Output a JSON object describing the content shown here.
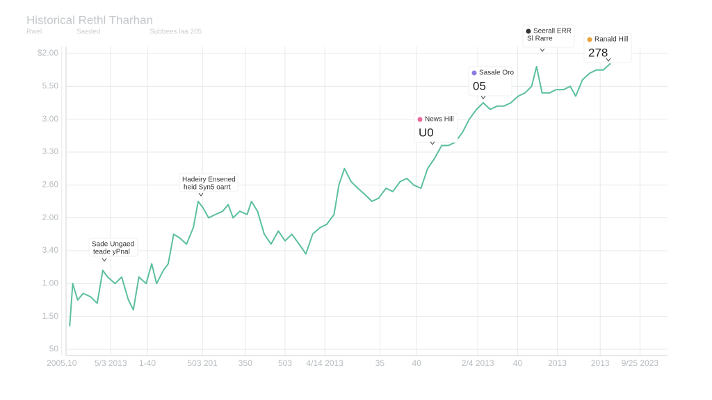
{
  "chart_data": {
    "type": "line",
    "title": "Historical Rethl Tharhan",
    "subtitle": [
      "Rwel",
      "Saeded",
      "Subbees laa 205"
    ],
    "xlim": [
      0,
      100
    ],
    "ylim": [
      0,
      9
    ],
    "grid": true,
    "xticks": [
      {
        "value": 1,
        "label": "2005.10"
      },
      {
        "value": 9,
        "label": "5/3 2013"
      },
      {
        "value": 15,
        "label": "1-40"
      },
      {
        "value": 24,
        "label": "503 201"
      },
      {
        "value": 31,
        "label": "350"
      },
      {
        "value": 37.5,
        "label": "503"
      },
      {
        "value": 44,
        "label": "4/14 2013"
      },
      {
        "value": 53,
        "label": "35"
      },
      {
        "value": 59,
        "label": "40"
      },
      {
        "value": 69,
        "label": "2/4 2013"
      },
      {
        "value": 75.5,
        "label": "40"
      },
      {
        "value": 82,
        "label": "2013"
      },
      {
        "value": 89,
        "label": "2013"
      },
      {
        "value": 95.5,
        "label": "9/25 2023"
      }
    ],
    "yticks": [
      {
        "value": 0,
        "label": "50"
      },
      {
        "value": 1,
        "label": "1.50"
      },
      {
        "value": 2,
        "label": "1.00"
      },
      {
        "value": 3,
        "label": "3.40"
      },
      {
        "value": 4,
        "label": "2.00"
      },
      {
        "value": 5,
        "label": "2.60"
      },
      {
        "value": 6,
        "label": "3.30"
      },
      {
        "value": 7,
        "label": "3.00"
      },
      {
        "value": 8,
        "label": "5.50"
      },
      {
        "value": 9,
        "label": "$2.00"
      }
    ],
    "series": [
      {
        "color": "#5bbf9e",
        "x": [
          2.3,
          2.8,
          3.6,
          4.5,
          5.7,
          6.8,
          7.7,
          8.5,
          9.7,
          10.8,
          11.9,
          12.7,
          13.6,
          14.8,
          15.7,
          16.5,
          17.6,
          18.4,
          19.3,
          20.2,
          21.4,
          22.5,
          23.3,
          24.1,
          25.0,
          26.1,
          27.3,
          28.2,
          29.0,
          30.1,
          31.3,
          32.0,
          33.0,
          34.1,
          35.2,
          36.4,
          37.5,
          38.6,
          39.8,
          40.9,
          42.0,
          43.2,
          44.3,
          45.5,
          46.3,
          47.2,
          48.3,
          49.4,
          50.6,
          51.7,
          52.8,
          54.0,
          55.1,
          56.3,
          57.4,
          58.5,
          59.7,
          60.8,
          61.9,
          63.1,
          64.2,
          65.3,
          66.5,
          67.6,
          68.8,
          69.9,
          71.0,
          72.2,
          73.3,
          74.4,
          75.6,
          76.7,
          77.8,
          78.6,
          79.5,
          80.7,
          81.8,
          83.0,
          84.1,
          85.0,
          86.1,
          87.3,
          88.4,
          89.5,
          90.7
        ],
        "values": [
          0.7,
          2.0,
          1.5,
          1.7,
          1.6,
          1.4,
          2.4,
          2.2,
          2.0,
          2.2,
          1.5,
          1.2,
          2.2,
          2.0,
          2.6,
          2.0,
          2.4,
          2.6,
          3.5,
          3.4,
          3.2,
          3.7,
          4.5,
          4.3,
          4.0,
          4.1,
          4.2,
          4.4,
          4.0,
          4.2,
          4.1,
          4.5,
          4.2,
          3.5,
          3.2,
          3.6,
          3.3,
          3.5,
          3.2,
          2.9,
          3.5,
          3.7,
          3.8,
          4.1,
          5.0,
          5.5,
          5.1,
          4.9,
          4.7,
          4.5,
          4.6,
          4.9,
          4.8,
          5.1,
          5.2,
          5.0,
          4.9,
          5.5,
          5.8,
          6.2,
          6.2,
          6.3,
          6.6,
          7.0,
          7.3,
          7.5,
          7.3,
          7.4,
          7.4,
          7.5,
          7.7,
          7.8,
          8.0,
          8.6,
          7.8,
          7.8,
          7.9,
          7.9,
          8.0,
          7.7,
          8.2,
          8.4,
          8.5,
          8.5,
          8.7
        ]
      }
    ],
    "annotations": [
      {
        "lines": [
          "Sade Ungaed",
          "teade yPnal"
        ]
      },
      {
        "lines": [
          "Hadeiry Ensened",
          "heid Syn5 oarrt"
        ]
      },
      {
        "lines": [
          "News Hill",
          "U0"
        ]
      },
      {
        "lines": [
          "Sasale Oro",
          "05"
        ]
      },
      {
        "lines": [
          "Seerall ERR",
          "Sl Rarre"
        ]
      },
      {
        "lines": [
          "Ranald Hill",
          "278"
        ]
      }
    ]
  }
}
